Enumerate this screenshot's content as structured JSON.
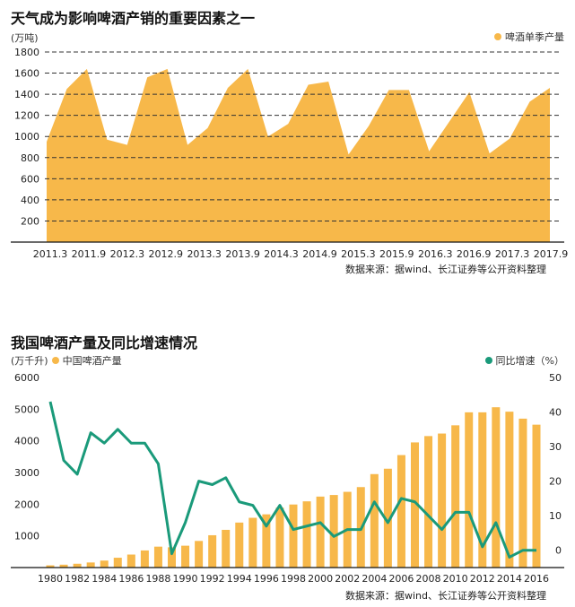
{
  "colors": {
    "orange": "#f7b84a",
    "green": "#1a9a7a",
    "grid": "#333333",
    "axis": "#111111"
  },
  "chart1": {
    "title": "天气成为影响啤酒产销的重要因素之一",
    "unit": "(万吨)",
    "legend": "啤酒单季产量",
    "source": "数据来源：据wind、长江证券等公开资料整理"
  },
  "chart2": {
    "title": "我国啤酒产量及同比增速情况",
    "unit_left": "(万千升)",
    "legend_bar": "中国啤酒产量",
    "legend_line": "同比增速（%）",
    "source": "数据来源：据wind、长江证券等公开资料整理"
  },
  "chart_data": [
    {
      "type": "area",
      "title": "天气成为影响啤酒产销的重要因素之一",
      "ylabel": "(万吨)",
      "ylim": [
        0,
        1800
      ],
      "yticks": [
        200,
        400,
        600,
        800,
        1000,
        1200,
        1400,
        1600,
        1800
      ],
      "xticks": [
        "2011.3",
        "2011.9",
        "2012.3",
        "2012.9",
        "2013.3",
        "2013.9",
        "2014.3",
        "2014.9",
        "2015.3",
        "2015.9",
        "2016.3",
        "2016.9",
        "2017.3",
        "2017.9"
      ],
      "grid": true,
      "legend_position": "top-right",
      "series": [
        {
          "name": "啤酒单季产量",
          "values": [
            950,
            1450,
            1640,
            970,
            920,
            1560,
            1640,
            920,
            1080,
            1460,
            1640,
            1000,
            1120,
            1490,
            1520,
            830,
            1100,
            1440,
            1440,
            860,
            1140,
            1420,
            840,
            980,
            1330,
            1460
          ]
        }
      ]
    },
    {
      "type": "bar",
      "title": "我国啤酒产量及同比增速情况",
      "ylabel": "(万千升)",
      "ylim": [
        0,
        6000
      ],
      "y2lim": [
        -5,
        50
      ],
      "yticks": [
        1000,
        2000,
        3000,
        4000,
        5000,
        6000
      ],
      "y2ticks": [
        0,
        10,
        20,
        30,
        40,
        50
      ],
      "xticks": [
        "1980",
        "1982",
        "1984",
        "1986",
        "1988",
        "1990",
        "1992",
        "1994",
        "1996",
        "1998",
        "2000",
        "2002",
        "2004",
        "2006",
        "2008",
        "2010",
        "2012",
        "2014",
        "2016"
      ],
      "grid": false,
      "legend_position": "top",
      "categories": [
        "1980",
        "1981",
        "1982",
        "1983",
        "1984",
        "1985",
        "1986",
        "1987",
        "1988",
        "1989",
        "1990",
        "1991",
        "1992",
        "1993",
        "1994",
        "1995",
        "1996",
        "1997",
        "1998",
        "1999",
        "2000",
        "2001",
        "2002",
        "2003",
        "2004",
        "2005",
        "2006",
        "2007",
        "2008",
        "2009",
        "2010",
        "2011",
        "2012",
        "2013",
        "2014",
        "2015",
        "2016"
      ],
      "series": [
        {
          "name": "中国啤酒产量",
          "values": [
            70,
            90,
            120,
            160,
            220,
            310,
            410,
            540,
            660,
            640,
            690,
            840,
            1020,
            1190,
            1420,
            1570,
            1680,
            1890,
            1990,
            2090,
            2240,
            2290,
            2390,
            2540,
            2950,
            3120,
            3550,
            3950,
            4150,
            4230,
            4490,
            4900,
            4900,
            5060,
            4920,
            4700,
            4510
          ]
        },
        {
          "name": "同比增速（%）",
          "values": [
            43,
            26,
            22,
            34,
            31,
            35,
            31,
            31,
            25,
            -1,
            8,
            20,
            19,
            21,
            14,
            13,
            7,
            13,
            6,
            7,
            8,
            4,
            6,
            6,
            14,
            8,
            15,
            14,
            10,
            6,
            11,
            11,
            1,
            8,
            -2,
            0,
            0
          ]
        }
      ]
    }
  ]
}
